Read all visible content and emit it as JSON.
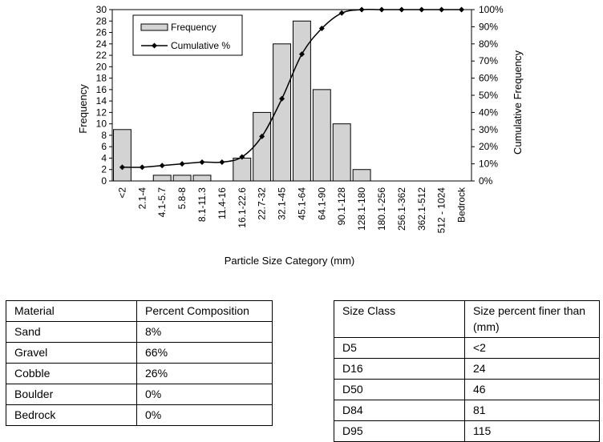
{
  "chart_data": {
    "type": "bar",
    "categories": [
      "<2",
      "2.1-4",
      "4.1-5.7",
      "5.8-8",
      "8.1-11.3",
      "11.4-16",
      "16.1-22.6",
      "22.7-32",
      "32.1-45",
      "45.1-64",
      "64.1-90",
      "90.1-128",
      "128.1-180",
      "180.1-256",
      "256.1-362",
      "362.1-512",
      "512 - 1024",
      "Bedrock"
    ],
    "series": [
      {
        "name": "Frequency",
        "type": "bar",
        "axis": "left",
        "values": [
          9,
          0,
          1,
          1,
          1,
          0,
          4,
          12,
          24,
          28,
          16,
          10,
          2,
          0,
          0,
          0,
          0,
          0
        ]
      },
      {
        "name": "Cumulative %",
        "type": "line",
        "axis": "right",
        "values": [
          8,
          8,
          9,
          10,
          11,
          11,
          14,
          26,
          48,
          74,
          89,
          98,
          100,
          100,
          100,
          100,
          100,
          100
        ]
      }
    ],
    "xlabel": "Particle Size Category (mm)",
    "ylabel": "Frequency",
    "y2label": "Cumulative Frequency",
    "ylim": [
      0,
      30
    ],
    "yticks": [
      0,
      2,
      4,
      6,
      8,
      10,
      12,
      14,
      16,
      18,
      20,
      22,
      24,
      26,
      28,
      30
    ],
    "y2lim": [
      0,
      100
    ],
    "y2ticks": [
      "0%",
      "10%",
      "20%",
      "30%",
      "40%",
      "50%",
      "60%",
      "70%",
      "80%",
      "90%",
      "100%"
    ],
    "legend_position": "top-left",
    "grid": false,
    "colors": {
      "bar_fill": "#d3d3d3",
      "bar_stroke": "#000000",
      "line": "#000000"
    }
  },
  "material_table": {
    "header": [
      "Material",
      "Percent Composition"
    ],
    "rows": [
      [
        "Sand",
        "8%"
      ],
      [
        "Gravel",
        "66%"
      ],
      [
        "Cobble",
        "26%"
      ],
      [
        "Boulder",
        "0%"
      ],
      [
        "Bedrock",
        "0%"
      ]
    ]
  },
  "size_table": {
    "header": [
      "Size Class",
      "Size percent  finer than (mm)"
    ],
    "rows": [
      [
        "D5",
        "<2"
      ],
      [
        "D16",
        "24"
      ],
      [
        "D50",
        "46"
      ],
      [
        "D84",
        "81"
      ],
      [
        "D95",
        "115"
      ]
    ]
  }
}
